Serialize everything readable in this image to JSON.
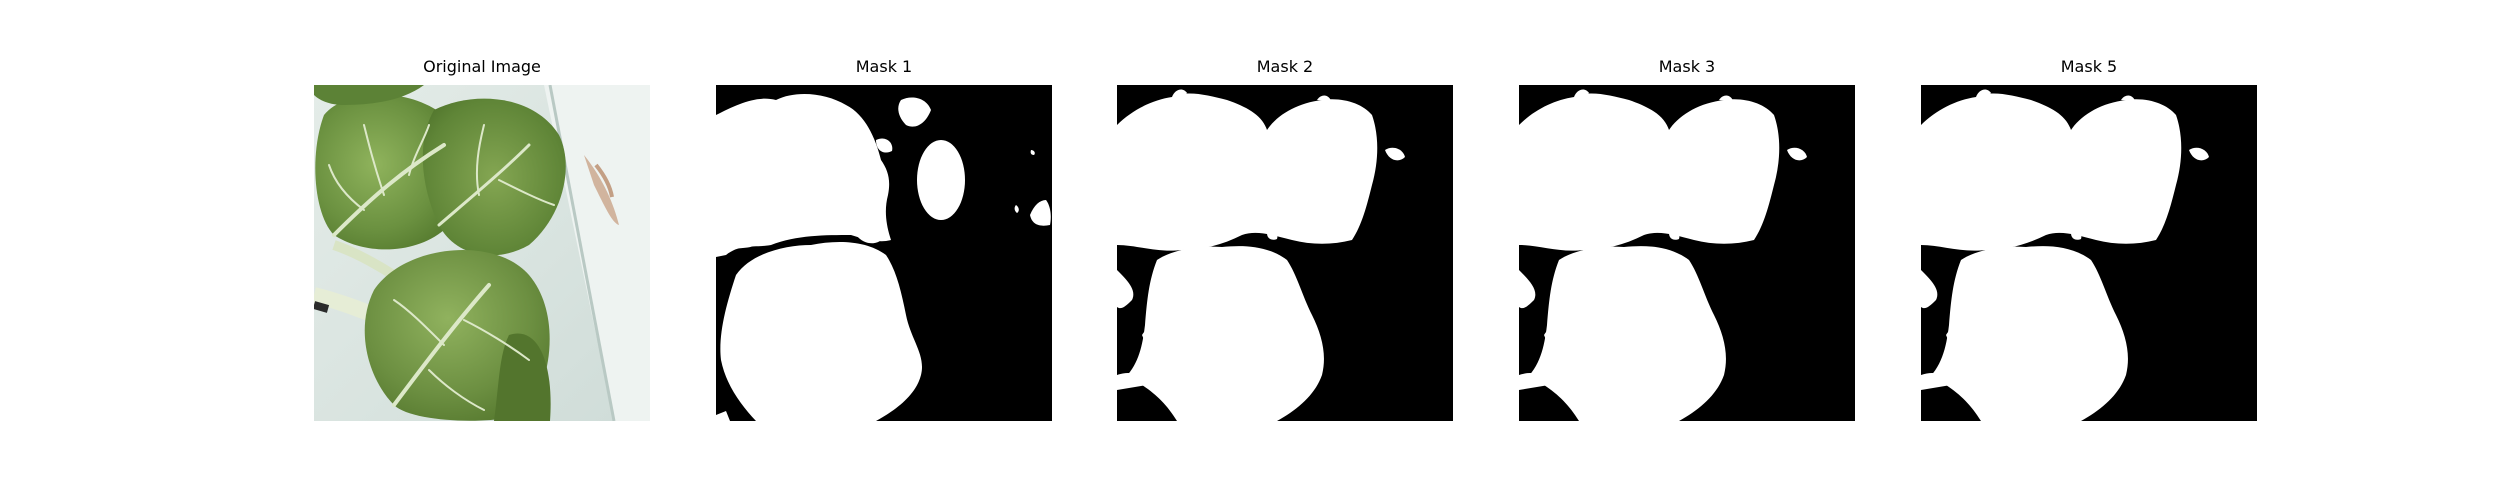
{
  "figure": {
    "panels": [
      {
        "title": "Original Image",
        "kind": "photo",
        "subject": "leaf-photo"
      },
      {
        "title": "Mask 1",
        "kind": "mask",
        "mask_variant": "mask-1"
      },
      {
        "title": "Mask 2",
        "kind": "mask",
        "mask_variant": "mask-2"
      },
      {
        "title": "Mask 3",
        "kind": "mask",
        "mask_variant": "mask-2"
      },
      {
        "title": "Mask 5",
        "kind": "mask",
        "mask_variant": "mask-2"
      }
    ],
    "colors": {
      "background": "#ffffff",
      "mask_background": "#000000",
      "mask_foreground": "#ffffff",
      "leaf_dark": "#4f7a2a",
      "leaf_mid": "#6e9440",
      "leaf_light": "#9dbb6a",
      "vein": "#d9e5c6",
      "surface": "#dfe9e6"
    }
  }
}
